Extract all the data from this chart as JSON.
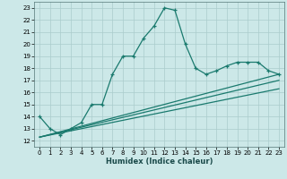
{
  "title": "",
  "xlabel": "Humidex (Indice chaleur)",
  "bg_color": "#cce8e8",
  "grid_color": "#aacccc",
  "line_color": "#1a7a6e",
  "xlim": [
    -0.5,
    23.5
  ],
  "ylim": [
    11.5,
    23.5
  ],
  "xticks": [
    0,
    1,
    2,
    3,
    4,
    5,
    6,
    7,
    8,
    9,
    10,
    11,
    12,
    13,
    14,
    15,
    16,
    17,
    18,
    19,
    20,
    21,
    22,
    23
  ],
  "yticks": [
    12,
    13,
    14,
    15,
    16,
    17,
    18,
    19,
    20,
    21,
    22,
    23
  ],
  "curve1_x": [
    0,
    1,
    2,
    3,
    4,
    5,
    6,
    7,
    8,
    9,
    10,
    11,
    12,
    13,
    14,
    15,
    16,
    17,
    18,
    19,
    20,
    21,
    22,
    23
  ],
  "curve1_y": [
    14.0,
    13.0,
    12.5,
    13.0,
    13.5,
    15.0,
    15.0,
    17.5,
    19.0,
    19.0,
    20.5,
    21.5,
    23.0,
    22.8,
    20.0,
    18.0,
    17.5,
    17.8,
    18.2,
    18.5,
    18.5,
    18.5,
    17.8,
    17.5
  ],
  "line1_x": [
    0,
    23
  ],
  "line1_y": [
    12.3,
    17.5
  ],
  "line2_x": [
    0,
    23
  ],
  "line2_y": [
    12.3,
    16.3
  ],
  "line3_x": [
    0,
    23
  ],
  "line3_y": [
    12.3,
    17.0
  ]
}
